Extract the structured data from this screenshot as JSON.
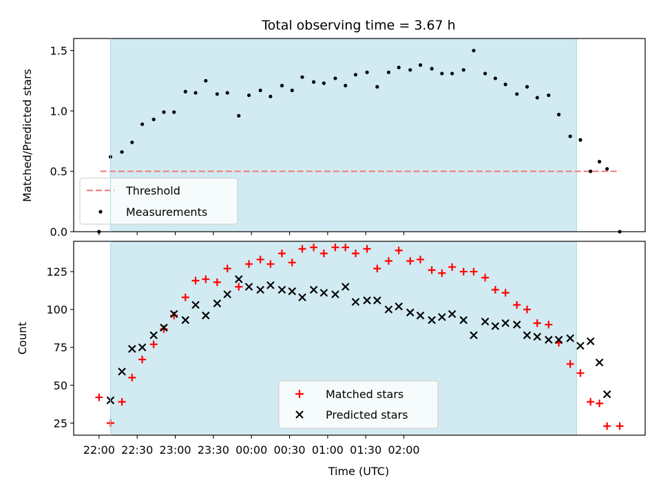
{
  "title": "Total observing time = 3.67 h",
  "colors": {
    "span": "#add8e6",
    "threshold": "#f08080",
    "measurements": "#000000",
    "matched": "#ff0000",
    "predicted": "#000000"
  },
  "x_ticks": [
    "22:00",
    "22:30",
    "23:00",
    "23:30",
    "00:00",
    "00:30",
    "01:00",
    "01:30",
    "02:00"
  ],
  "xlabel": "Time (UTC)",
  "chart_data": [
    {
      "type": "scatter",
      "ylabel": "Matched/Predicted stars",
      "ylim": [
        0,
        1.6
      ],
      "xlim_minutes": [
        -20,
        430
      ],
      "y_ticks": [
        "0.0",
        "0.5",
        "1.0",
        "1.5"
      ],
      "span_minutes": [
        9,
        376
      ],
      "legend_position": "lower-left",
      "threshold": {
        "name": "Threshold",
        "y": 0.5,
        "x_range_minutes": [
          1,
          410
        ]
      },
      "series": [
        {
          "name": "Measurements",
          "x_minutes": [
            0,
            9,
            18,
            26,
            34,
            43,
            51,
            59,
            68,
            76,
            84,
            93,
            101,
            110,
            118,
            127,
            135,
            144,
            152,
            160,
            169,
            177,
            186,
            194,
            202,
            211,
            219,
            228,
            236,
            245,
            253,
            262,
            270,
            278,
            287,
            295,
            304,
            312,
            320,
            329,
            337,
            345,
            354,
            362,
            371,
            379,
            387,
            394,
            400,
            410
          ],
          "y": [
            0.0,
            0.62,
            0.66,
            0.74,
            0.89,
            0.93,
            0.99,
            0.99,
            1.16,
            1.15,
            1.25,
            1.14,
            1.15,
            0.96,
            1.13,
            1.17,
            1.12,
            1.21,
            1.17,
            1.28,
            1.24,
            1.23,
            1.27,
            1.21,
            1.3,
            1.32,
            1.2,
            1.32,
            1.36,
            1.34,
            1.38,
            1.35,
            1.31,
            1.31,
            1.34,
            1.5,
            1.31,
            1.27,
            1.22,
            1.14,
            1.2,
            1.11,
            1.13,
            0.97,
            0.79,
            0.76,
            0.5,
            0.58,
            0.52,
            0.0
          ]
        }
      ]
    },
    {
      "type": "scatter",
      "ylabel": "Count",
      "ylim": [
        17,
        145
      ],
      "xlim_minutes": [
        -20,
        430
      ],
      "y_ticks": [
        "25",
        "50",
        "75",
        "100",
        "125"
      ],
      "span_minutes": [
        9,
        376
      ],
      "legend_position": "lower-center",
      "series": [
        {
          "name": "Matched stars",
          "marker": "plus",
          "x_minutes": [
            0,
            9,
            18,
            26,
            34,
            43,
            51,
            59,
            68,
            76,
            84,
            93,
            101,
            110,
            118,
            127,
            135,
            144,
            152,
            160,
            169,
            177,
            186,
            194,
            202,
            211,
            219,
            228,
            236,
            245,
            253,
            262,
            270,
            278,
            287,
            295,
            304,
            312,
            320,
            329,
            337,
            345,
            354,
            362,
            371,
            379,
            387,
            394,
            400,
            410
          ],
          "y": [
            42,
            25,
            39,
            55,
            67,
            77,
            87,
            96,
            108,
            119,
            120,
            118,
            127,
            115,
            130,
            133,
            130,
            137,
            131,
            140,
            141,
            137,
            141,
            141,
            137,
            140,
            127,
            132,
            139,
            132,
            133,
            126,
            124,
            128,
            125,
            125,
            121,
            113,
            111,
            103,
            100,
            91,
            90,
            78,
            64,
            58,
            39,
            38,
            23,
            23
          ]
        },
        {
          "name": "Predicted stars",
          "marker": "x",
          "x_minutes": [
            9,
            18,
            26,
            34,
            43,
            51,
            59,
            68,
            76,
            84,
            93,
            101,
            110,
            118,
            127,
            135,
            144,
            152,
            160,
            169,
            177,
            186,
            194,
            202,
            211,
            219,
            228,
            236,
            245,
            253,
            262,
            270,
            278,
            287,
            295,
            304,
            312,
            320,
            329,
            337,
            345,
            354,
            362,
            371,
            379,
            387,
            394,
            400
          ],
          "y": [
            40,
            59,
            74,
            75,
            83,
            88,
            97,
            93,
            103,
            96,
            104,
            110,
            120,
            115,
            113,
            116,
            113,
            112,
            108,
            113,
            111,
            110,
            115,
            105,
            106,
            106,
            100,
            102,
            98,
            96,
            93,
            95,
            97,
            93,
            83,
            92,
            89,
            91,
            90,
            83,
            82,
            80,
            80,
            81,
            76,
            79,
            65,
            44
          ]
        }
      ]
    }
  ]
}
